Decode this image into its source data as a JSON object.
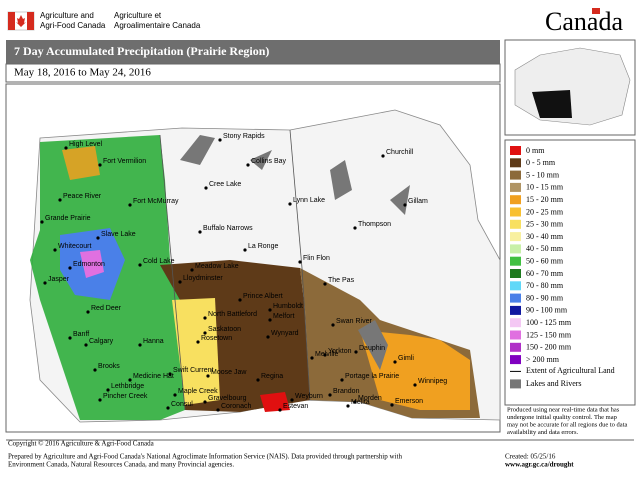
{
  "header": {
    "dept_en": [
      "Agriculture and",
      "Agri-Food Canada"
    ],
    "dept_fr": [
      "Agriculture et",
      "Agroalimentaire Canada"
    ],
    "wordmark": "Canada"
  },
  "title": "7 Day Accumulated Precipitation (Prairie Region)",
  "date_range": "May 18, 2016 to May 24, 2016",
  "legend": {
    "items": [
      {
        "label": "0 mm",
        "color": "#e01010"
      },
      {
        "label": "0 - 5 mm",
        "color": "#5e3a18"
      },
      {
        "label": "5 - 10 mm",
        "color": "#8c6a3a"
      },
      {
        "label": "10 - 15 mm",
        "color": "#b09464"
      },
      {
        "label": "15 - 20 mm",
        "color": "#f0a020"
      },
      {
        "label": "20 - 25 mm",
        "color": "#f8c030"
      },
      {
        "label": "25 - 30 mm",
        "color": "#f8e060"
      },
      {
        "label": "30 - 40 mm",
        "color": "#f8f0a0"
      },
      {
        "label": "40 - 50 mm",
        "color": "#c8f0a8"
      },
      {
        "label": "50 - 60 mm",
        "color": "#40c040"
      },
      {
        "label": "60 - 70 mm",
        "color": "#1e7a1e"
      },
      {
        "label": "70 - 80 mm",
        "color": "#60d8f8"
      },
      {
        "label": "80 - 90 mm",
        "color": "#4a80e8"
      },
      {
        "label": "90 - 100 mm",
        "color": "#1018a0"
      },
      {
        "label": "100 - 125 mm",
        "color": "#f4c8f4"
      },
      {
        "label": "125 - 150 mm",
        "color": "#e070e0"
      },
      {
        "label": "150 - 200 mm",
        "color": "#b030c8"
      },
      {
        "label": "> 200 mm",
        "color": "#8000c0"
      }
    ],
    "extent": "Extent of Agricultural Land",
    "lakes": "Lakes and Rivers"
  },
  "note": [
    "Produced using near real-time data that has",
    "undergone initial quality control.  The map",
    "may not be accurate for all regions due to data",
    "availability and data errors."
  ],
  "cities": [
    "High Level",
    "Fort Vermilion",
    "Peace River",
    "Fort McMurray",
    "Grande Prairie",
    "Slave Lake",
    "Whitecourt",
    "Edmonton",
    "Jasper",
    "Red Deer",
    "Banff",
    "Calgary",
    "Hanna",
    "Brooks",
    "Medicine Hat",
    "Lethbridge",
    "Pincher Creek",
    "Cold Lake",
    "Lloydminster",
    "Stony Rapids",
    "Collins Bay",
    "Cree Lake",
    "Buffalo Narrows",
    "Meadow Lake",
    "La Ronge",
    "Prince Albert",
    "North Battleford",
    "Saskatoon",
    "Rosetown",
    "Wynyard",
    "Humboldt",
    "Melfort",
    "Swift Current",
    "Moose Jaw",
    "Regina",
    "Maple Creek",
    "Gravelbourg",
    "Consul",
    "Coronach",
    "Estevan",
    "Weyburn",
    "Melville",
    "Yorkton",
    "Flin Flon",
    "The Pas",
    "Lynn Lake",
    "Churchill",
    "Gillam",
    "Thompson",
    "Swan River",
    "Dauphin",
    "Gimli",
    "Portage la Prairie",
    "Winnipeg",
    "Brandon",
    "Morden",
    "Emerson",
    "Melita"
  ],
  "footer": {
    "copyright": "Copyright © 2016 Agriculture & Agri-Food Canada",
    "prepared": [
      "Prepared by Agriculture and Agri-Food Canada's National Agroclimate Information Service (NAIS).  Data provided through partnership with",
      "Environment Canada, Natural Resources Canada, and many Provincial agencies."
    ],
    "created": "Created: 05/25/16",
    "url": "www.agr.gc.ca/drought"
  }
}
